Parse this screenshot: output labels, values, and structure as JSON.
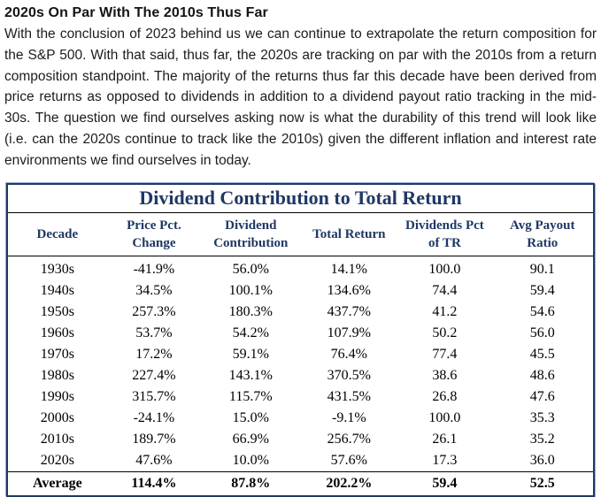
{
  "article": {
    "heading": "2020s On Par With The 2010s Thus Far",
    "body": "With the conclusion of 2023 behind us we can continue to extrapolate the return composition for the S&P 500. With that said, thus far, the 2020s are tracking on par with the 2010s from a return composition standpoint. The majority of the returns thus far this decade have been derived from price returns as opposed to dividends in addition to a dividend payout ratio tracking in the mid-30s. The question we find ourselves asking now is what the durability of this trend will look like (i.e. can the 2020s continue to track like the 2010s) given the different inflation and interest rate environments we find ourselves in today."
  },
  "table": {
    "title": "Dividend Contribution to Total Return",
    "columns": [
      "Decade",
      "Price Pct.\nChange",
      "Dividend\nContribution",
      "Total Return",
      "Dividends Pct\nof TR",
      "Avg Payout\nRatio"
    ],
    "rows": [
      [
        "1930s",
        "-41.9%",
        "56.0%",
        "14.1%",
        "100.0",
        "90.1"
      ],
      [
        "1940s",
        "34.5%",
        "100.1%",
        "134.6%",
        "74.4",
        "59.4"
      ],
      [
        "1950s",
        "257.3%",
        "180.3%",
        "437.7%",
        "41.2",
        "54.6"
      ],
      [
        "1960s",
        "53.7%",
        "54.2%",
        "107.9%",
        "50.2",
        "56.0"
      ],
      [
        "1970s",
        "17.2%",
        "59.1%",
        "76.4%",
        "77.4",
        "45.5"
      ],
      [
        "1980s",
        "227.4%",
        "143.1%",
        "370.5%",
        "38.6",
        "48.6"
      ],
      [
        "1990s",
        "315.7%",
        "115.7%",
        "431.5%",
        "26.8",
        "47.6"
      ],
      [
        "2000s",
        "-24.1%",
        "15.0%",
        "-9.1%",
        "100.0",
        "35.3"
      ],
      [
        "2010s",
        "189.7%",
        "66.9%",
        "256.7%",
        "26.1",
        "35.2"
      ],
      [
        "2020s",
        "47.6%",
        "10.0%",
        "57.6%",
        "17.3",
        "36.0"
      ]
    ],
    "average_row": [
      "Average",
      "114.4%",
      "87.8%",
      "202.2%",
      "59.4",
      "52.5"
    ]
  },
  "chart_data": {
    "type": "table",
    "title": "Dividend Contribution to Total Return",
    "columns": [
      "Decade",
      "Price Pct. Change",
      "Dividend Contribution",
      "Total Return",
      "Dividends Pct of TR",
      "Avg Payout Ratio"
    ],
    "rows": [
      [
        "1930s",
        -41.9,
        56.0,
        14.1,
        100.0,
        90.1
      ],
      [
        "1940s",
        34.5,
        100.1,
        134.6,
        74.4,
        59.4
      ],
      [
        "1950s",
        257.3,
        180.3,
        437.7,
        41.2,
        54.6
      ],
      [
        "1960s",
        53.7,
        54.2,
        107.9,
        50.2,
        56.0
      ],
      [
        "1970s",
        17.2,
        59.1,
        76.4,
        77.4,
        45.5
      ],
      [
        "1980s",
        227.4,
        143.1,
        370.5,
        38.6,
        48.6
      ],
      [
        "1990s",
        315.7,
        115.7,
        431.5,
        26.8,
        47.6
      ],
      [
        "2000s",
        -24.1,
        15.0,
        -9.1,
        100.0,
        35.3
      ],
      [
        "2010s",
        189.7,
        66.9,
        256.7,
        26.1,
        35.2
      ],
      [
        "2020s",
        47.6,
        10.0,
        57.6,
        17.3,
        36.0
      ],
      [
        "Average",
        114.4,
        87.8,
        202.2,
        59.4,
        52.5
      ]
    ]
  },
  "colors": {
    "navy": "#1F3864",
    "body_text": "#1c1c1c",
    "table_border_highlight": "#9db3d9"
  }
}
